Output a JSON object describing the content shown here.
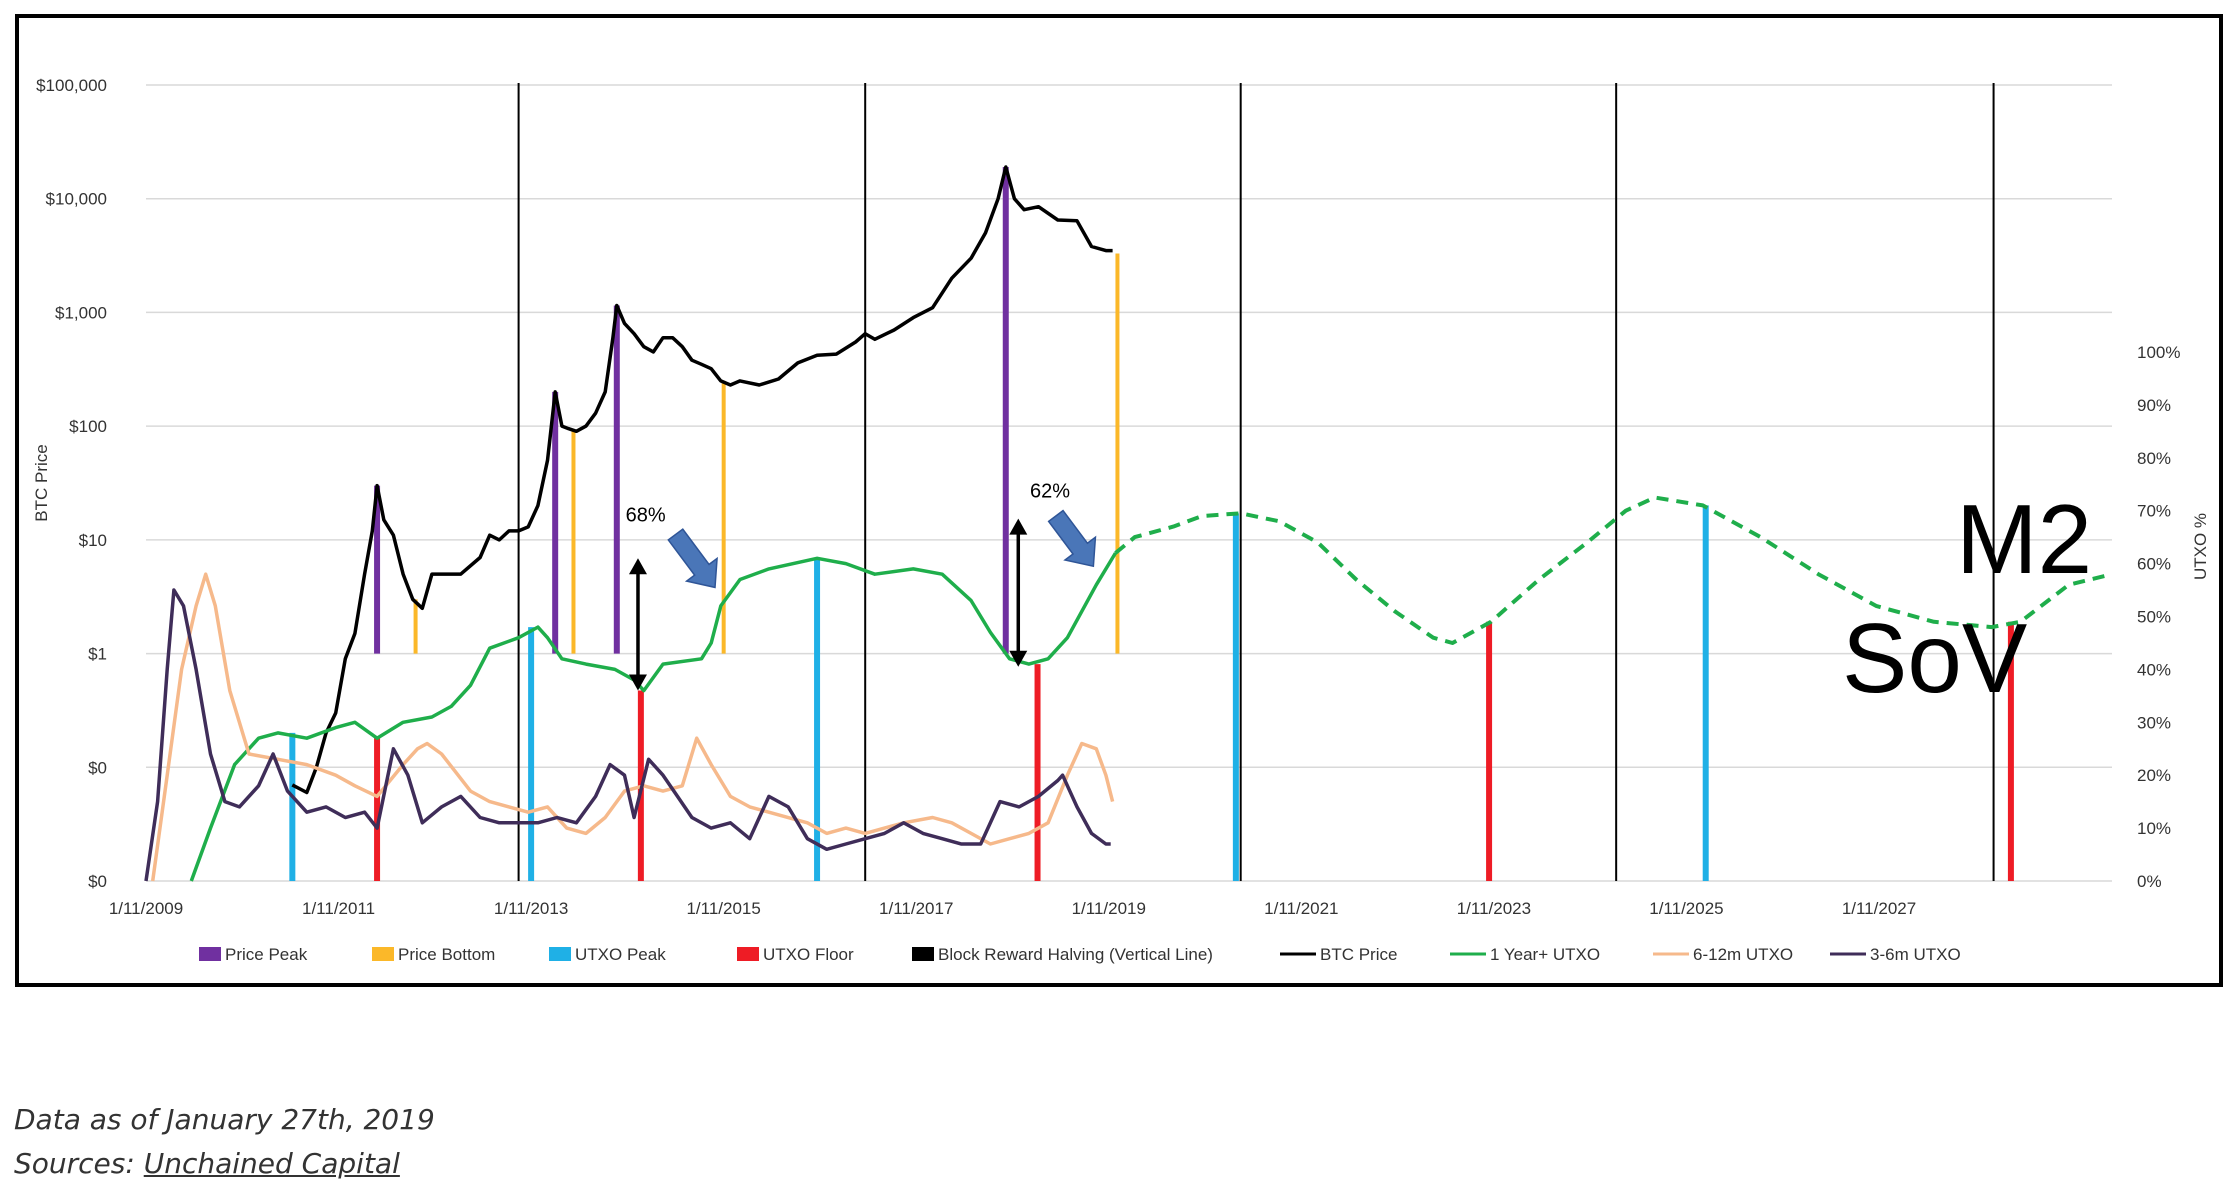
{
  "chart_data": {
    "type": "line",
    "left_axis": {
      "label": "BTC Price",
      "scale": "log",
      "tick_labels": [
        "$100,000",
        "$10,000",
        "$1,000",
        "$100",
        "$10",
        "$1",
        "$0",
        "$0"
      ],
      "tick_values": [
        100000,
        10000,
        1000,
        100,
        10,
        1,
        0.1,
        0.01
      ]
    },
    "right_axis": {
      "label": "UTXO %",
      "range": [
        0,
        100
      ],
      "tick_labels": [
        "100%",
        "90%",
        "80%",
        "70%",
        "60%",
        "50%",
        "40%",
        "30%",
        "20%",
        "10%",
        "0%"
      ],
      "tick_values": [
        100,
        90,
        80,
        70,
        60,
        50,
        40,
        30,
        20,
        10,
        0
      ]
    },
    "x_axis": {
      "range": [
        2009.03,
        2029.45
      ],
      "tick_labels": [
        "1/11/2009",
        "1/11/2011",
        "1/11/2013",
        "1/11/2015",
        "1/11/2017",
        "1/11/2019",
        "1/11/2021",
        "1/11/2023",
        "1/11/2025",
        "1/11/2027"
      ],
      "tick_values": [
        2009.03,
        2011.03,
        2013.03,
        2015.03,
        2017.03,
        2019.03,
        2021.03,
        2023.03,
        2025.03,
        2027.03
      ]
    },
    "halvings": [
      2012.9,
      2016.5,
      2020.4,
      2024.3,
      2028.22
    ],
    "series": [
      {
        "name": "BTC Price",
        "color": "#000000",
        "points": [
          [
            2010.55,
            0.07
          ],
          [
            2010.7,
            0.06
          ],
          [
            2010.8,
            0.1
          ],
          [
            2010.9,
            0.2
          ],
          [
            2011.0,
            0.3
          ],
          [
            2011.1,
            0.9
          ],
          [
            2011.2,
            1.5
          ],
          [
            2011.3,
            5
          ],
          [
            2011.38,
            12
          ],
          [
            2011.43,
            30
          ],
          [
            2011.5,
            15
          ],
          [
            2011.6,
            11
          ],
          [
            2011.7,
            5
          ],
          [
            2011.8,
            3
          ],
          [
            2011.9,
            2.5
          ],
          [
            2012.0,
            5
          ],
          [
            2012.1,
            5
          ],
          [
            2012.2,
            5
          ],
          [
            2012.3,
            5
          ],
          [
            2012.5,
            7
          ],
          [
            2012.6,
            11
          ],
          [
            2012.7,
            10
          ],
          [
            2012.8,
            12
          ],
          [
            2012.9,
            12
          ],
          [
            2013.0,
            13
          ],
          [
            2013.1,
            20
          ],
          [
            2013.2,
            50
          ],
          [
            2013.28,
            200
          ],
          [
            2013.35,
            100
          ],
          [
            2013.42,
            95
          ],
          [
            2013.5,
            90
          ],
          [
            2013.6,
            100
          ],
          [
            2013.7,
            130
          ],
          [
            2013.8,
            200
          ],
          [
            2013.88,
            600
          ],
          [
            2013.92,
            1150
          ],
          [
            2014.0,
            800
          ],
          [
            2014.1,
            650
          ],
          [
            2014.2,
            500
          ],
          [
            2014.3,
            450
          ],
          [
            2014.4,
            600
          ],
          [
            2014.5,
            600
          ],
          [
            2014.6,
            500
          ],
          [
            2014.7,
            380
          ],
          [
            2014.8,
            350
          ],
          [
            2014.9,
            320
          ],
          [
            2015.0,
            250
          ],
          [
            2015.1,
            230
          ],
          [
            2015.2,
            250
          ],
          [
            2015.4,
            230
          ],
          [
            2015.6,
            260
          ],
          [
            2015.8,
            360
          ],
          [
            2016.0,
            420
          ],
          [
            2016.2,
            430
          ],
          [
            2016.4,
            550
          ],
          [
            2016.5,
            650
          ],
          [
            2016.6,
            580
          ],
          [
            2016.8,
            700
          ],
          [
            2017.0,
            900
          ],
          [
            2017.2,
            1100
          ],
          [
            2017.4,
            2000
          ],
          [
            2017.6,
            3000
          ],
          [
            2017.75,
            5000
          ],
          [
            2017.88,
            10000
          ],
          [
            2017.96,
            19000
          ],
          [
            2018.05,
            10000
          ],
          [
            2018.15,
            8000
          ],
          [
            2018.3,
            8500
          ],
          [
            2018.5,
            6500
          ],
          [
            2018.7,
            6400
          ],
          [
            2018.85,
            3800
          ],
          [
            2019.0,
            3500
          ],
          [
            2019.07,
            3500
          ]
        ]
      },
      {
        "name": "1 Year+ UTXO",
        "color": "#1fae4b",
        "points": [
          [
            2009.5,
            0
          ],
          [
            2009.7,
            10
          ],
          [
            2009.95,
            22
          ],
          [
            2010.2,
            27
          ],
          [
            2010.4,
            28
          ],
          [
            2010.7,
            27
          ],
          [
            2011.0,
            29
          ],
          [
            2011.2,
            30
          ],
          [
            2011.43,
            27
          ],
          [
            2011.7,
            30
          ],
          [
            2012.0,
            31
          ],
          [
            2012.2,
            33
          ],
          [
            2012.4,
            37
          ],
          [
            2012.6,
            44
          ],
          [
            2012.9,
            46
          ],
          [
            2013.1,
            48
          ],
          [
            2013.2,
            46
          ],
          [
            2013.35,
            42
          ],
          [
            2013.6,
            41
          ],
          [
            2013.9,
            40
          ],
          [
            2014.1,
            38
          ],
          [
            2014.2,
            36
          ],
          [
            2014.4,
            41
          ],
          [
            2014.8,
            42
          ],
          [
            2014.9,
            45
          ],
          [
            2015.0,
            52
          ],
          [
            2015.2,
            57
          ],
          [
            2015.5,
            59
          ],
          [
            2016.0,
            61
          ],
          [
            2016.3,
            60
          ],
          [
            2016.6,
            58
          ],
          [
            2017.0,
            59
          ],
          [
            2017.3,
            58
          ],
          [
            2017.6,
            53
          ],
          [
            2017.8,
            47
          ],
          [
            2018.0,
            42
          ],
          [
            2018.2,
            41
          ],
          [
            2018.4,
            42
          ],
          [
            2018.6,
            46
          ],
          [
            2018.9,
            56
          ],
          [
            2019.1,
            62
          ]
        ]
      },
      {
        "name": "1 Year+ UTXO (projected)",
        "color": "#1fae4b",
        "dashed": true,
        "points": [
          [
            2019.1,
            62
          ],
          [
            2019.3,
            65
          ],
          [
            2019.7,
            67
          ],
          [
            2020.0,
            69
          ],
          [
            2020.4,
            69.5
          ],
          [
            2020.8,
            68
          ],
          [
            2021.2,
            64
          ],
          [
            2021.6,
            57
          ],
          [
            2022.0,
            51
          ],
          [
            2022.4,
            46
          ],
          [
            2022.6,
            45
          ],
          [
            2023.0,
            49
          ],
          [
            2023.5,
            57
          ],
          [
            2024.0,
            64
          ],
          [
            2024.4,
            70
          ],
          [
            2024.7,
            72.5
          ],
          [
            2025.2,
            71
          ],
          [
            2025.8,
            65
          ],
          [
            2026.4,
            58
          ],
          [
            2027.0,
            52
          ],
          [
            2027.6,
            49
          ],
          [
            2028.2,
            48
          ],
          [
            2028.5,
            49
          ],
          [
            2029.0,
            56
          ],
          [
            2029.45,
            58
          ]
        ]
      },
      {
        "name": "6-12m UTXO",
        "color": "#f6b98b",
        "points": [
          [
            2009.1,
            0
          ],
          [
            2009.25,
            20
          ],
          [
            2009.4,
            40
          ],
          [
            2009.55,
            52
          ],
          [
            2009.65,
            58
          ],
          [
            2009.75,
            52
          ],
          [
            2009.9,
            36
          ],
          [
            2010.1,
            24
          ],
          [
            2010.4,
            23
          ],
          [
            2010.7,
            22
          ],
          [
            2011.0,
            20
          ],
          [
            2011.2,
            18
          ],
          [
            2011.43,
            16
          ],
          [
            2011.7,
            22
          ],
          [
            2011.85,
            25
          ],
          [
            2011.95,
            26
          ],
          [
            2012.1,
            24
          ],
          [
            2012.4,
            17
          ],
          [
            2012.6,
            15
          ],
          [
            2012.8,
            14
          ],
          [
            2013.0,
            13
          ],
          [
            2013.2,
            14
          ],
          [
            2013.4,
            10
          ],
          [
            2013.6,
            9
          ],
          [
            2013.8,
            12
          ],
          [
            2014.0,
            17
          ],
          [
            2014.2,
            18
          ],
          [
            2014.4,
            17
          ],
          [
            2014.6,
            18
          ],
          [
            2014.75,
            27
          ],
          [
            2014.9,
            22
          ],
          [
            2015.1,
            16
          ],
          [
            2015.3,
            14
          ],
          [
            2015.5,
            13
          ],
          [
            2015.7,
            12
          ],
          [
            2015.9,
            11
          ],
          [
            2016.1,
            9
          ],
          [
            2016.3,
            10
          ],
          [
            2016.5,
            9
          ],
          [
            2016.7,
            10
          ],
          [
            2016.9,
            11
          ],
          [
            2017.2,
            12
          ],
          [
            2017.4,
            11
          ],
          [
            2017.6,
            9
          ],
          [
            2017.8,
            7
          ],
          [
            2018.0,
            8
          ],
          [
            2018.2,
            9
          ],
          [
            2018.4,
            11
          ],
          [
            2018.6,
            20
          ],
          [
            2018.75,
            26
          ],
          [
            2018.9,
            25
          ],
          [
            2019.0,
            20
          ],
          [
            2019.07,
            15
          ]
        ]
      },
      {
        "name": "3-6m UTXO",
        "color": "#3f2d59",
        "points": [
          [
            2009.03,
            0
          ],
          [
            2009.15,
            15
          ],
          [
            2009.25,
            40
          ],
          [
            2009.32,
            55
          ],
          [
            2009.42,
            52
          ],
          [
            2009.55,
            40
          ],
          [
            2009.7,
            24
          ],
          [
            2009.85,
            15
          ],
          [
            2010.0,
            14
          ],
          [
            2010.2,
            18
          ],
          [
            2010.35,
            24
          ],
          [
            2010.5,
            17
          ],
          [
            2010.7,
            13
          ],
          [
            2010.9,
            14
          ],
          [
            2011.1,
            12
          ],
          [
            2011.3,
            13
          ],
          [
            2011.43,
            10
          ],
          [
            2011.6,
            25
          ],
          [
            2011.75,
            20
          ],
          [
            2011.9,
            11
          ],
          [
            2012.1,
            14
          ],
          [
            2012.3,
            16
          ],
          [
            2012.5,
            12
          ],
          [
            2012.7,
            11
          ],
          [
            2012.9,
            11
          ],
          [
            2013.1,
            11
          ],
          [
            2013.3,
            12
          ],
          [
            2013.5,
            11
          ],
          [
            2013.7,
            16
          ],
          [
            2013.85,
            22
          ],
          [
            2014.0,
            20
          ],
          [
            2014.1,
            12
          ],
          [
            2014.25,
            23
          ],
          [
            2014.4,
            20
          ],
          [
            2014.55,
            16
          ],
          [
            2014.7,
            12
          ],
          [
            2014.9,
            10
          ],
          [
            2015.1,
            11
          ],
          [
            2015.3,
            8
          ],
          [
            2015.5,
            16
          ],
          [
            2015.7,
            14
          ],
          [
            2015.9,
            8
          ],
          [
            2016.1,
            6
          ],
          [
            2016.3,
            7
          ],
          [
            2016.5,
            8
          ],
          [
            2016.7,
            9
          ],
          [
            2016.9,
            11
          ],
          [
            2017.1,
            9
          ],
          [
            2017.3,
            8
          ],
          [
            2017.5,
            7
          ],
          [
            2017.7,
            7
          ],
          [
            2017.9,
            15
          ],
          [
            2018.1,
            14
          ],
          [
            2018.3,
            16
          ],
          [
            2018.5,
            19
          ],
          [
            2018.55,
            20
          ],
          [
            2018.7,
            14
          ],
          [
            2018.85,
            9
          ],
          [
            2019.0,
            7
          ],
          [
            2019.05,
            7
          ]
        ]
      }
    ],
    "vertical_markers": {
      "price_peak": [
        2011.43,
        2013.28,
        2013.92,
        2017.96
      ],
      "price_bottom": [
        2011.83,
        2013.47,
        2015.03,
        2019.12
      ],
      "utxo_peak": [
        2010.55,
        2013.03,
        2016.0,
        2020.35,
        2025.23
      ],
      "utxo_floor": [
        2011.43,
        2014.17,
        2018.29,
        2022.98,
        2028.4
      ]
    },
    "annotations": [
      {
        "text": "68%",
        "x": 2014.2,
        "y_pct": 68
      },
      {
        "text": "62%",
        "x": 2018.35,
        "y_pct": 71
      },
      {
        "text": "M2",
        "x": 2028.1,
        "y_pct": 65
      },
      {
        "text": "SoV",
        "x": 2027.4,
        "y_pct": 40
      }
    ],
    "legend": {
      "position": "bottom",
      "items": [
        {
          "label": "Price Peak",
          "color": "#7030a0",
          "kind": "box"
        },
        {
          "label": "Price Bottom",
          "color": "#fbb829",
          "kind": "box"
        },
        {
          "label": "UTXO Peak",
          "color": "#1fb0e6",
          "kind": "box"
        },
        {
          "label": "UTXO Floor",
          "color": "#ee1c25",
          "kind": "box"
        },
        {
          "label": "Block Reward Halving (Vertical Line)",
          "color": "#000000",
          "kind": "box"
        },
        {
          "label": "BTC Price",
          "color": "#000000",
          "kind": "line"
        },
        {
          "label": "1 Year+ UTXO",
          "color": "#1fae4b",
          "kind": "line"
        },
        {
          "label": "6-12m UTXO",
          "color": "#f6b98b",
          "kind": "line"
        },
        {
          "label": "3-6m UTXO",
          "color": "#3f2d59",
          "kind": "line"
        }
      ]
    },
    "colors": {
      "price_peak": "#7030a0",
      "price_bottom": "#fbb829",
      "utxo_peak": "#1fb0e6",
      "utxo_floor": "#ee1c25",
      "arrow_blue": "#4a76b8",
      "grid": "#d9d9d9"
    }
  },
  "caption": {
    "line1": "Data as of January 27th, 2019",
    "line2_prefix": "Sources: ",
    "line2_link": "Unchained Capital"
  }
}
